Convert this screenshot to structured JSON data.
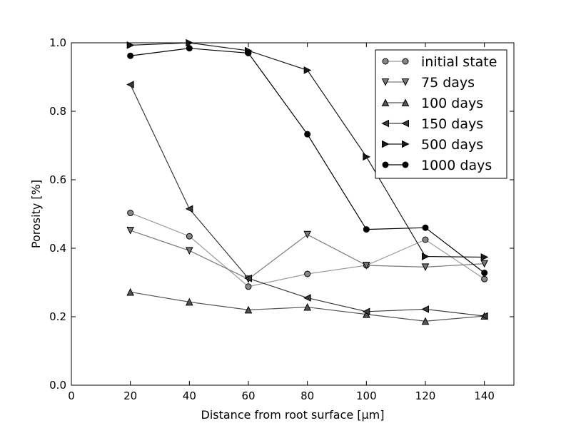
{
  "chart_data": {
    "type": "line",
    "title": "",
    "xlabel": "Distance from root surface [μm]",
    "ylabel": "Porosity [%]",
    "xlim": [
      0,
      150
    ],
    "ylim": [
      0.0,
      1.0
    ],
    "xticks": [
      "0",
      "20",
      "40",
      "60",
      "80",
      "100",
      "120",
      "140"
    ],
    "yticks": [
      "0.0",
      "0.2",
      "0.4",
      "0.6",
      "0.8",
      "1.0"
    ],
    "grid": false,
    "legend_position": "top-right",
    "x": [
      20,
      40,
      60,
      80,
      100,
      120,
      140
    ],
    "series": [
      {
        "name": "initial state",
        "values": [
          0.503,
          0.435,
          0.288,
          0.325,
          0.35,
          0.425,
          0.31
        ],
        "marker": "circle",
        "color": "#999999",
        "fill": "#888888"
      },
      {
        "name": "75 days",
        "values": [
          0.452,
          0.393,
          0.31,
          0.44,
          0.35,
          0.345,
          0.355
        ],
        "marker": "triangle-down",
        "color": "#7a7a7a",
        "fill": "#777777"
      },
      {
        "name": "100 days",
        "values": [
          0.272,
          0.243,
          0.22,
          0.228,
          0.207,
          0.187,
          0.202
        ],
        "marker": "triangle-up",
        "color": "#555555",
        "fill": "#555555"
      },
      {
        "name": "150 days",
        "values": [
          0.878,
          0.515,
          0.312,
          0.255,
          0.215,
          0.222,
          0.202
        ],
        "marker": "triangle-left",
        "color": "#3a3a3a",
        "fill": "#3a3a3a"
      },
      {
        "name": "500 days",
        "values": [
          0.993,
          1.0,
          0.977,
          0.92,
          0.667,
          0.376,
          0.374
        ],
        "marker": "triangle-right",
        "color": "#1a1a1a",
        "fill": "#1a1a1a"
      },
      {
        "name": "1000 days",
        "values": [
          0.962,
          0.984,
          0.97,
          0.733,
          0.455,
          0.46,
          0.328
        ],
        "marker": "circle",
        "color": "#000000",
        "fill": "#000000"
      }
    ]
  }
}
